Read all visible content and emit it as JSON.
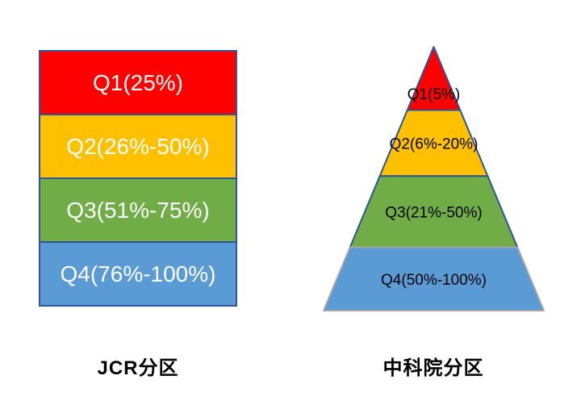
{
  "chart_data": [
    {
      "type": "bar",
      "subtype": "stacked-quartile-blocks",
      "title": "JCR分区",
      "categories": [
        "Q1",
        "Q2",
        "Q3",
        "Q4"
      ],
      "labels": [
        "Q1(25%)",
        "Q2(26%-50%)",
        "Q3(51%-75%)",
        "Q4(76%-100%)"
      ],
      "ranges_percent": [
        [
          0,
          25
        ],
        [
          26,
          50
        ],
        [
          51,
          75
        ],
        [
          76,
          100
        ]
      ],
      "values": [
        25,
        25,
        25,
        25
      ],
      "colors": [
        "#FF0000",
        "#FFC000",
        "#70AD47",
        "#5B9BD5"
      ],
      "border_color": "#2F5597",
      "text_color": "#FFFFFF",
      "legend": "none",
      "grid": false
    },
    {
      "type": "pie",
      "subtype": "pyramid",
      "title": "中科院分区",
      "categories": [
        "Q1",
        "Q2",
        "Q3",
        "Q4"
      ],
      "labels": [
        "Q1(5%)",
        "Q2(6%-20%)",
        "Q3(21%-50%)",
        "Q4(50%-100%)"
      ],
      "ranges_percent": [
        [
          0,
          5
        ],
        [
          6,
          20
        ],
        [
          21,
          50
        ],
        [
          50,
          100
        ]
      ],
      "values": [
        5,
        15,
        30,
        50
      ],
      "slice_bounds_fraction": [
        0,
        0.24,
        0.49,
        0.76,
        1
      ],
      "colors": [
        "#FF0000",
        "#FFC000",
        "#70AD47",
        "#5B9BD5"
      ],
      "border_colors": [
        "#2F5597",
        "#2F5597",
        "#2F5597",
        "#A6A6A6"
      ],
      "text_color": "#000000",
      "legend": "none",
      "grid": false
    }
  ]
}
